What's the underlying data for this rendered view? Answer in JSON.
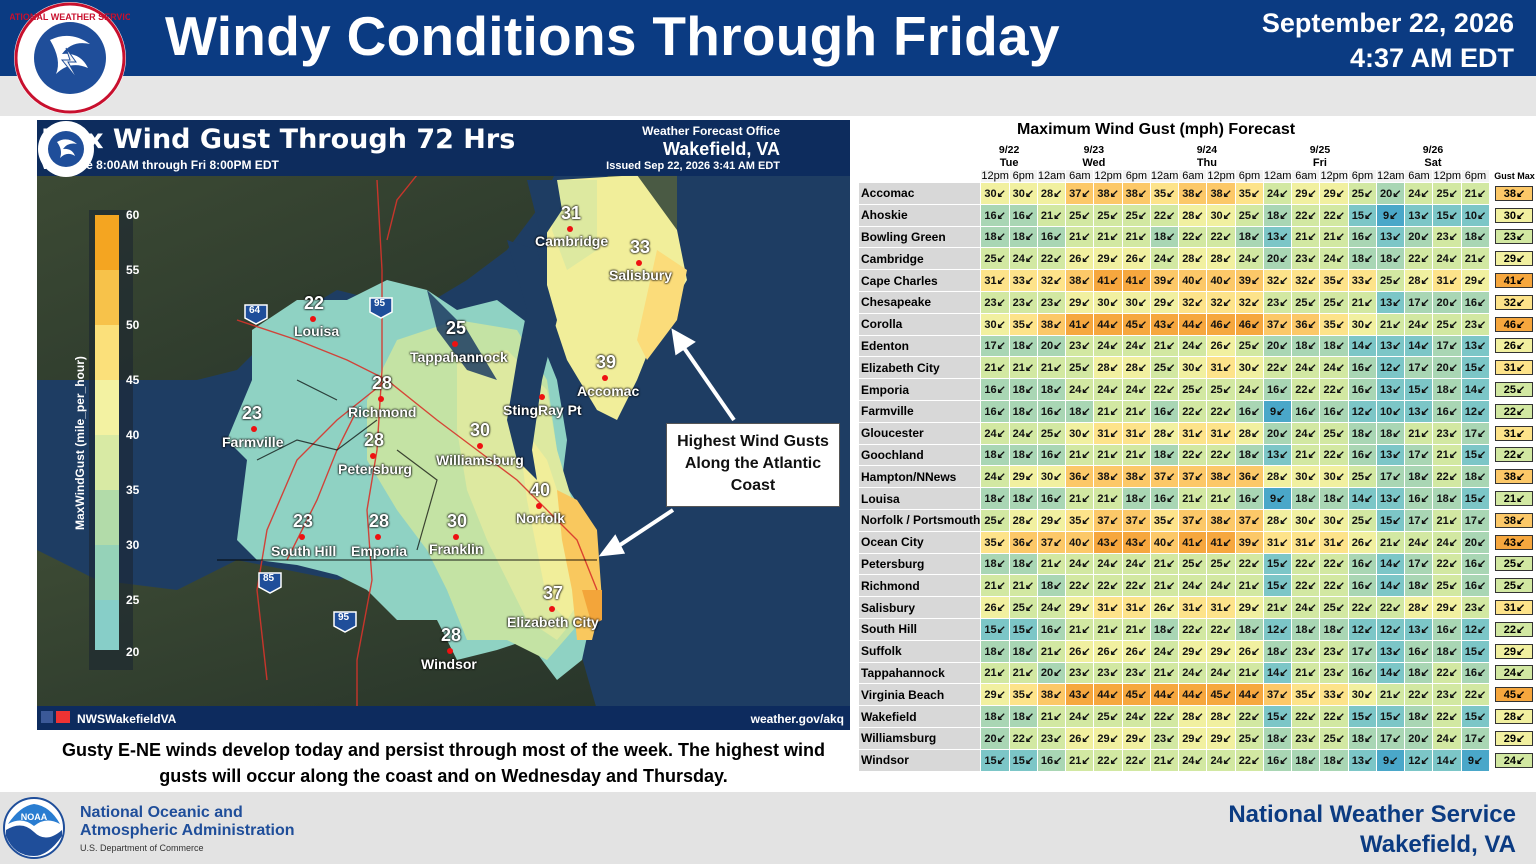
{
  "header": {
    "title": "Windy Conditions Through Friday",
    "date": "September 22, 2026",
    "time": "4:37 AM EDT",
    "logo_text": "NATIONAL WEATHER SERVICE"
  },
  "map": {
    "title": "Max Wind Gust Through 72 Hrs",
    "valid": "Valid Tue 8:00AM through Fri 8:00PM EDT",
    "wfo_line1": "Weather Forecast Office",
    "wfo_line2": "Wakefield, VA",
    "issued": "Issued Sep 22, 2026 3:41 AM EDT",
    "social": "NWSWakefieldVA",
    "url": "weather.gov/akq",
    "scale_label": "MaxWindGust (mile_per_hour)",
    "scale_ticks": [
      "60",
      "55",
      "50",
      "45",
      "40",
      "35",
      "30",
      "25",
      "20"
    ],
    "cities": [
      {
        "name": "Cambridge",
        "value": "31"
      },
      {
        "name": "Salisbury",
        "value": "33"
      },
      {
        "name": "Louisa",
        "value": "22"
      },
      {
        "name": "Tappahannock",
        "value": "25"
      },
      {
        "name": "Accomac",
        "value": "39"
      },
      {
        "name": "Richmond",
        "value": "28"
      },
      {
        "name": "StingRay Pt",
        "value": ""
      },
      {
        "name": "Farmville",
        "value": "23"
      },
      {
        "name": "Petersburg",
        "value": "28"
      },
      {
        "name": "Williamsburg",
        "value": "30"
      },
      {
        "name": "Norfolk",
        "value": "40"
      },
      {
        "name": "South Hill",
        "value": "23"
      },
      {
        "name": "Emporia",
        "value": "28"
      },
      {
        "name": "Franklin",
        "value": "30"
      },
      {
        "name": "Elizabeth City",
        "value": "37"
      },
      {
        "name": "Windsor",
        "value": "28"
      }
    ],
    "highways": [
      "64",
      "95",
      "85",
      "95"
    ],
    "callout": "Highest Wind Gusts Along the Atlantic Coast"
  },
  "caption": "Gusty E-NE winds develop today and persist through most of the week. The highest wind gusts will occur along the coast and on Wednesday and Thursday.",
  "table": {
    "title": "Maximum Wind Gust (mph) Forecast",
    "dates": [
      "9/22",
      "9/23",
      "9/24",
      "9/25",
      "9/26"
    ],
    "days": [
      "Tue",
      "Wed",
      "Thu",
      "Fri",
      "Sat"
    ],
    "hours": [
      "12pm",
      "6pm",
      "12am",
      "6am",
      "12pm",
      "6pm",
      "12am",
      "6am",
      "12pm",
      "6pm",
      "12am",
      "6am",
      "12pm",
      "6pm",
      "12am",
      "6am",
      "12pm",
      "6pm"
    ],
    "max_header": "Gust Max",
    "rows": [
      {
        "name": "Accomac",
        "v": [
          30,
          30,
          28,
          37,
          38,
          38,
          35,
          38,
          38,
          35,
          24,
          29,
          29,
          25,
          20,
          24,
          25,
          21
        ],
        "max": "38"
      },
      {
        "name": "Ahoskie",
        "v": [
          16,
          16,
          21,
          25,
          25,
          25,
          22,
          28,
          30,
          25,
          18,
          22,
          22,
          15,
          9,
          13,
          15,
          10
        ],
        "max": "30"
      },
      {
        "name": "Bowling Green",
        "v": [
          18,
          18,
          16,
          21,
          21,
          21,
          18,
          22,
          22,
          18,
          13,
          21,
          21,
          16,
          13,
          20,
          23,
          18
        ],
        "max": "23"
      },
      {
        "name": "Cambridge",
        "v": [
          25,
          24,
          22,
          26,
          29,
          26,
          24,
          28,
          28,
          24,
          20,
          23,
          24,
          18,
          18,
          22,
          24,
          21
        ],
        "max": "29"
      },
      {
        "name": "Cape Charles",
        "v": [
          31,
          33,
          32,
          38,
          41,
          41,
          39,
          40,
          40,
          39,
          32,
          32,
          35,
          33,
          25,
          28,
          31,
          29
        ],
        "max": "41"
      },
      {
        "name": "Chesapeake",
        "v": [
          23,
          23,
          23,
          29,
          30,
          30,
          29,
          32,
          32,
          32,
          23,
          25,
          25,
          21,
          13,
          17,
          20,
          16
        ],
        "max": "32"
      },
      {
        "name": "Corolla",
        "v": [
          30,
          35,
          38,
          41,
          44,
          45,
          43,
          44,
          46,
          46,
          37,
          36,
          35,
          30,
          21,
          24,
          25,
          23
        ],
        "max": "46"
      },
      {
        "name": "Edenton",
        "v": [
          17,
          18,
          20,
          23,
          24,
          24,
          21,
          24,
          26,
          25,
          20,
          18,
          18,
          14,
          13,
          14,
          17,
          13
        ],
        "max": "26"
      },
      {
        "name": "Elizabeth City",
        "v": [
          21,
          21,
          21,
          25,
          28,
          28,
          25,
          30,
          31,
          30,
          22,
          24,
          24,
          16,
          12,
          17,
          20,
          15
        ],
        "max": "31"
      },
      {
        "name": "Emporia",
        "v": [
          16,
          18,
          18,
          24,
          24,
          24,
          22,
          25,
          25,
          24,
          16,
          22,
          22,
          16,
          13,
          15,
          18,
          14
        ],
        "max": "25"
      },
      {
        "name": "Farmville",
        "v": [
          16,
          18,
          16,
          18,
          21,
          21,
          16,
          22,
          22,
          16,
          9,
          16,
          16,
          12,
          10,
          13,
          16,
          12
        ],
        "max": "22"
      },
      {
        "name": "Gloucester",
        "v": [
          24,
          24,
          25,
          30,
          31,
          31,
          28,
          31,
          31,
          28,
          20,
          24,
          25,
          18,
          18,
          21,
          23,
          17
        ],
        "max": "31"
      },
      {
        "name": "Goochland",
        "v": [
          18,
          18,
          16,
          21,
          21,
          21,
          18,
          22,
          22,
          18,
          13,
          21,
          22,
          16,
          13,
          17,
          21,
          15
        ],
        "max": "22"
      },
      {
        "name": "Hampton/NNews",
        "v": [
          24,
          29,
          30,
          36,
          38,
          38,
          37,
          37,
          38,
          36,
          28,
          30,
          30,
          25,
          17,
          18,
          22,
          18
        ],
        "max": "38"
      },
      {
        "name": "Louisa",
        "v": [
          18,
          18,
          16,
          21,
          21,
          18,
          16,
          21,
          21,
          16,
          9,
          18,
          18,
          14,
          13,
          16,
          18,
          15
        ],
        "max": "21"
      },
      {
        "name": "Norfolk / Portsmouth",
        "v": [
          25,
          28,
          29,
          35,
          37,
          37,
          35,
          37,
          38,
          37,
          28,
          30,
          30,
          25,
          15,
          17,
          21,
          17
        ],
        "max": "38"
      },
      {
        "name": "Ocean City",
        "v": [
          35,
          36,
          37,
          40,
          43,
          43,
          40,
          41,
          41,
          39,
          31,
          31,
          31,
          26,
          21,
          24,
          24,
          20
        ],
        "max": "43"
      },
      {
        "name": "Petersburg",
        "v": [
          18,
          18,
          21,
          24,
          24,
          24,
          21,
          25,
          25,
          22,
          15,
          22,
          22,
          16,
          14,
          17,
          22,
          16
        ],
        "max": "25"
      },
      {
        "name": "Richmond",
        "v": [
          21,
          21,
          18,
          22,
          22,
          22,
          21,
          24,
          24,
          21,
          15,
          22,
          22,
          16,
          14,
          18,
          25,
          16
        ],
        "max": "25"
      },
      {
        "name": "Salisbury",
        "v": [
          26,
          25,
          24,
          29,
          31,
          31,
          26,
          31,
          31,
          29,
          21,
          24,
          25,
          22,
          22,
          28,
          29,
          23
        ],
        "max": "31"
      },
      {
        "name": "South Hill",
        "v": [
          15,
          15,
          16,
          21,
          21,
          21,
          18,
          22,
          22,
          18,
          12,
          18,
          18,
          12,
          12,
          13,
          16,
          12
        ],
        "max": "22"
      },
      {
        "name": "Suffolk",
        "v": [
          18,
          18,
          21,
          26,
          26,
          26,
          24,
          29,
          29,
          26,
          18,
          23,
          23,
          17,
          13,
          16,
          18,
          15
        ],
        "max": "29"
      },
      {
        "name": "Tappahannock",
        "v": [
          21,
          21,
          20,
          23,
          23,
          23,
          21,
          24,
          24,
          21,
          14,
          21,
          23,
          16,
          14,
          18,
          22,
          16
        ],
        "max": "24"
      },
      {
        "name": "Virginia Beach",
        "v": [
          29,
          35,
          38,
          43,
          44,
          45,
          44,
          44,
          45,
          44,
          37,
          35,
          33,
          30,
          21,
          22,
          23,
          22
        ],
        "max": "45"
      },
      {
        "name": "Wakefield",
        "v": [
          18,
          18,
          21,
          24,
          25,
          24,
          22,
          28,
          28,
          22,
          15,
          22,
          22,
          15,
          15,
          18,
          22,
          15
        ],
        "max": "28"
      },
      {
        "name": "Williamsburg",
        "v": [
          20,
          22,
          23,
          26,
          29,
          29,
          23,
          29,
          29,
          25,
          18,
          23,
          25,
          18,
          17,
          20,
          24,
          17
        ],
        "max": "29"
      },
      {
        "name": "Windsor",
        "v": [
          15,
          15,
          16,
          21,
          22,
          22,
          21,
          24,
          24,
          22,
          16,
          18,
          18,
          13,
          9,
          12,
          14,
          9
        ],
        "max": "24"
      }
    ]
  },
  "footer": {
    "noaa_line1": "National Oceanic and",
    "noaa_line2": "Atmospheric Administration",
    "noaa_sub": "U.S. Department of Commerce",
    "nws_line1": "National Weather Service",
    "nws_line2": "Wakefield, VA",
    "noaa_logo_text": "NOAA"
  },
  "colors": {
    "header_blue": "#0b3b82",
    "footer_blue": "#0b3b82",
    "table_scale": [
      "#4aa7c9",
      "#7cc6c7",
      "#a9d6b4",
      "#d2e8a2",
      "#f1f0a0",
      "#fde38a",
      "#fcc868",
      "#f6a73e"
    ]
  }
}
